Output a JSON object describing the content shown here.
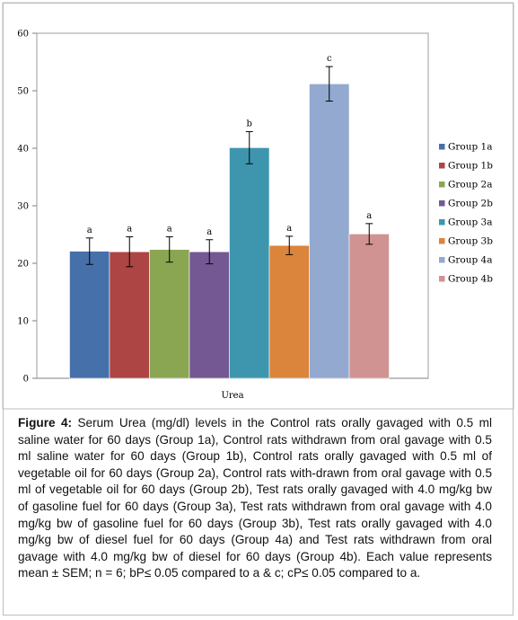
{
  "chart_data": {
    "type": "bar",
    "categories": [
      "Urea"
    ],
    "series": [
      {
        "name": "Group 1a",
        "value": 22.1,
        "error": 2.3,
        "label": "a",
        "color": "#4670aa"
      },
      {
        "name": "Group 1b",
        "value": 22.0,
        "error": 2.6,
        "label": "a",
        "color": "#ac4544"
      },
      {
        "name": "Group 2a",
        "value": 22.4,
        "error": 2.2,
        "label": "a",
        "color": "#8ba653"
      },
      {
        "name": "Group 2b",
        "value": 22.0,
        "error": 2.1,
        "label": "a",
        "color": "#735893"
      },
      {
        "name": "Group 3a",
        "value": 40.1,
        "error": 2.8,
        "label": "b",
        "color": "#3d96ae"
      },
      {
        "name": "Group 3b",
        "value": 23.1,
        "error": 1.6,
        "label": "a",
        "color": "#db843c"
      },
      {
        "name": "Group 4a",
        "value": 51.2,
        "error": 3.0,
        "label": "c",
        "color": "#93a9d0"
      },
      {
        "name": "Group 4b",
        "value": 25.1,
        "error": 1.8,
        "label": "a",
        "color": "#d09392"
      }
    ],
    "yticks": [
      "0",
      "10",
      "20",
      "30",
      "40",
      "50",
      "60"
    ],
    "ylim": [
      0,
      60
    ],
    "grid": false,
    "legend_position": "right"
  },
  "caption": {
    "label": "Figure 4:",
    "text": " Serum Urea (mg/dl) levels in the Control rats orally gavaged with 0.5 ml saline water for 60 days (Group 1a), Control rats withdrawn from oral gavage with 0.5 ml saline water  for 60 days (Group 1b), Control rats orally gavaged with 0.5 ml of vegetable oil for 60 days (Group 2a), Control rats with-drawn from oral gavage with 0.5 ml of vegetable oil for  60 days (Group 2b), Test rats orally gavaged with 4.0 mg/kg bw of gasoline fuel for 60 days (Group 3a), Test rats withdrawn from oral gavage with 4.0 mg/kg bw of gasoline fuel for 60 days (Group 3b), Test rats orally gavaged with 4.0 mg/kg bw of diesel fuel for 60 days (Group 4a) and Test rats withdrawn from oral gavage with 4.0 mg/kg bw of diesel for 60 days (Group 4b). Each value represents mean ± SEM; n = 6; bP≤ 0.05 compared to a & c; cP≤ 0.05 compared to a."
  }
}
